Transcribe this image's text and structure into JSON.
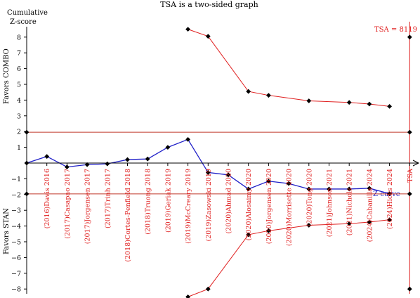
{
  "chart_data": {
    "type": "line",
    "title": "TSA is a two-sided graph",
    "ylabel_top": "Cumulative",
    "ylabel_bottom": "Z-score",
    "favors_top": "Favors COMBO",
    "favors_bottom": "Favors STAN",
    "tsa_label": "TSA = 8119",
    "zcurve_label": "Z-curve",
    "ylim": [
      -8.5,
      8.8
    ],
    "ytick_labels": [
      "−8",
      "−7",
      "−6",
      "−5",
      "−4",
      "−3",
      "−2",
      "−1",
      "1",
      "2",
      "3",
      "4",
      "5",
      "6",
      "7",
      "8"
    ],
    "yticks": [
      -8,
      -7,
      -6,
      -5,
      -4,
      -3,
      -2,
      -1,
      1,
      2,
      3,
      4,
      5,
      6,
      7,
      8
    ],
    "categories": [
      "(2016)Davis 2016",
      "(2017)Casapao 2017",
      "(2017)Jorgensen 2017",
      "(2017)Trinh 2017",
      "(2018)Cortes-Penfield 2018",
      "(2018)Truong 2018",
      "(2019)Geriak 2019",
      "(2019)McCreary 2019",
      "(2019)Zasowski 2019",
      "(2020)Ahmad 2020",
      "(2020)Alosaimy 2020",
      "(2020)Jorgensen 2020",
      "(2020)Morrisette 2020",
      "(2020)Tong 2020",
      "(2021)Johnson 2021",
      "(2021)Nichols 2021",
      "(2024)Cabanilla 2024",
      "(2024)Hicks 2024",
      "TSA"
    ],
    "x_positions": [
      2,
      3,
      4,
      5,
      6,
      7,
      8,
      9,
      10,
      11,
      12,
      13,
      14,
      15,
      16,
      17,
      18,
      19,
      20
    ],
    "z_curve": {
      "name": "Z-curve",
      "x": [
        1,
        2,
        3,
        4,
        5,
        6,
        7,
        8,
        9,
        10,
        11,
        12,
        13,
        14,
        15,
        16,
        17,
        18,
        19
      ],
      "y": [
        0,
        0.42,
        -0.25,
        -0.1,
        -0.05,
        0.22,
        0.26,
        1.0,
        1.5,
        -0.6,
        -0.75,
        -1.65,
        -1.15,
        -1.3,
        -1.65,
        -1.65,
        -1.65,
        -1.6,
        -1.95
      ]
    },
    "upper_boundary": {
      "x": [
        9,
        10,
        12,
        13,
        15,
        17,
        18,
        19
      ],
      "y": [
        8.5,
        8.05,
        4.55,
        4.3,
        3.95,
        3.85,
        3.75,
        3.6
      ]
    },
    "lower_boundary": {
      "x": [
        9,
        10,
        12,
        13,
        15,
        17,
        18,
        19
      ],
      "y": [
        -8.5,
        -8.0,
        -4.55,
        -4.3,
        -3.95,
        -3.85,
        -3.75,
        -3.6
      ]
    },
    "conventional_boundaries": [
      1.96,
      -1.96
    ],
    "tsa_x": 20,
    "tsa_markers_y": [
      8,
      1.96,
      -1.96,
      -8
    ],
    "colors": {
      "z_curve": "#2020c8",
      "boundary": "#e02020",
      "conventional": "#c0392b",
      "axis": "#000000",
      "marker": "#000000"
    }
  }
}
